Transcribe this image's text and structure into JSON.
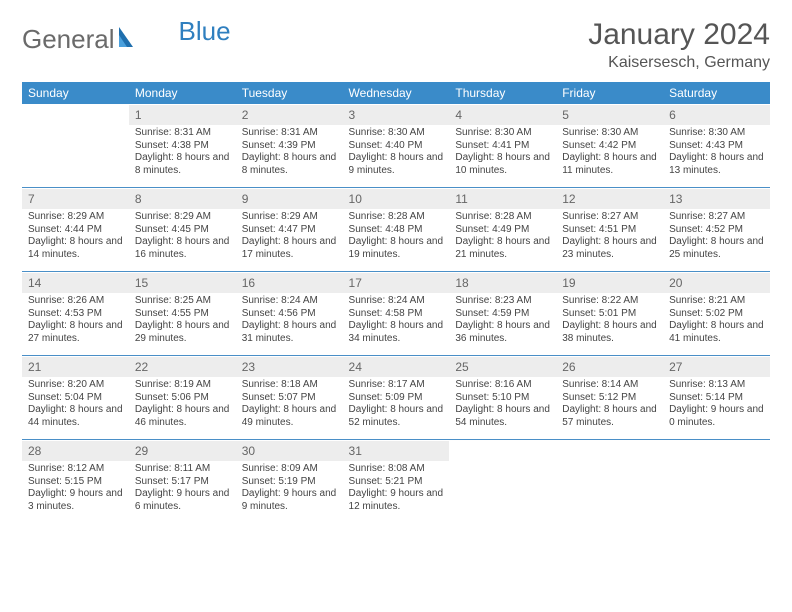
{
  "brand": {
    "general": "General",
    "blue": "Blue"
  },
  "title": "January 2024",
  "location": "Kaisersesch, Germany",
  "colors": {
    "header_bg": "#3a8bc9",
    "header_text": "#ffffff",
    "daynum_bg": "#ededed",
    "daynum_text": "#666666",
    "week_divider": "#4a8fc7",
    "body_bg": "#ffffff",
    "text": "#444444",
    "logo_general": "#6a6a6a",
    "logo_blue": "#2f7fbf"
  },
  "fonts": {
    "title_size_pt": 22,
    "location_size_pt": 12,
    "dayhead_size_pt": 9,
    "daynum_size_pt": 9,
    "detail_size_pt": 7.5
  },
  "daynames": [
    "Sunday",
    "Monday",
    "Tuesday",
    "Wednesday",
    "Thursday",
    "Friday",
    "Saturday"
  ],
  "weeks": [
    [
      null,
      {
        "n": "1",
        "sunrise": "Sunrise: 8:31 AM",
        "sunset": "Sunset: 4:38 PM",
        "daylight": "Daylight: 8 hours and 8 minutes."
      },
      {
        "n": "2",
        "sunrise": "Sunrise: 8:31 AM",
        "sunset": "Sunset: 4:39 PM",
        "daylight": "Daylight: 8 hours and 8 minutes."
      },
      {
        "n": "3",
        "sunrise": "Sunrise: 8:30 AM",
        "sunset": "Sunset: 4:40 PM",
        "daylight": "Daylight: 8 hours and 9 minutes."
      },
      {
        "n": "4",
        "sunrise": "Sunrise: 8:30 AM",
        "sunset": "Sunset: 4:41 PM",
        "daylight": "Daylight: 8 hours and 10 minutes."
      },
      {
        "n": "5",
        "sunrise": "Sunrise: 8:30 AM",
        "sunset": "Sunset: 4:42 PM",
        "daylight": "Daylight: 8 hours and 11 minutes."
      },
      {
        "n": "6",
        "sunrise": "Sunrise: 8:30 AM",
        "sunset": "Sunset: 4:43 PM",
        "daylight": "Daylight: 8 hours and 13 minutes."
      }
    ],
    [
      {
        "n": "7",
        "sunrise": "Sunrise: 8:29 AM",
        "sunset": "Sunset: 4:44 PM",
        "daylight": "Daylight: 8 hours and 14 minutes."
      },
      {
        "n": "8",
        "sunrise": "Sunrise: 8:29 AM",
        "sunset": "Sunset: 4:45 PM",
        "daylight": "Daylight: 8 hours and 16 minutes."
      },
      {
        "n": "9",
        "sunrise": "Sunrise: 8:29 AM",
        "sunset": "Sunset: 4:47 PM",
        "daylight": "Daylight: 8 hours and 17 minutes."
      },
      {
        "n": "10",
        "sunrise": "Sunrise: 8:28 AM",
        "sunset": "Sunset: 4:48 PM",
        "daylight": "Daylight: 8 hours and 19 minutes."
      },
      {
        "n": "11",
        "sunrise": "Sunrise: 8:28 AM",
        "sunset": "Sunset: 4:49 PM",
        "daylight": "Daylight: 8 hours and 21 minutes."
      },
      {
        "n": "12",
        "sunrise": "Sunrise: 8:27 AM",
        "sunset": "Sunset: 4:51 PM",
        "daylight": "Daylight: 8 hours and 23 minutes."
      },
      {
        "n": "13",
        "sunrise": "Sunrise: 8:27 AM",
        "sunset": "Sunset: 4:52 PM",
        "daylight": "Daylight: 8 hours and 25 minutes."
      }
    ],
    [
      {
        "n": "14",
        "sunrise": "Sunrise: 8:26 AM",
        "sunset": "Sunset: 4:53 PM",
        "daylight": "Daylight: 8 hours and 27 minutes."
      },
      {
        "n": "15",
        "sunrise": "Sunrise: 8:25 AM",
        "sunset": "Sunset: 4:55 PM",
        "daylight": "Daylight: 8 hours and 29 minutes."
      },
      {
        "n": "16",
        "sunrise": "Sunrise: 8:24 AM",
        "sunset": "Sunset: 4:56 PM",
        "daylight": "Daylight: 8 hours and 31 minutes."
      },
      {
        "n": "17",
        "sunrise": "Sunrise: 8:24 AM",
        "sunset": "Sunset: 4:58 PM",
        "daylight": "Daylight: 8 hours and 34 minutes."
      },
      {
        "n": "18",
        "sunrise": "Sunrise: 8:23 AM",
        "sunset": "Sunset: 4:59 PM",
        "daylight": "Daylight: 8 hours and 36 minutes."
      },
      {
        "n": "19",
        "sunrise": "Sunrise: 8:22 AM",
        "sunset": "Sunset: 5:01 PM",
        "daylight": "Daylight: 8 hours and 38 minutes."
      },
      {
        "n": "20",
        "sunrise": "Sunrise: 8:21 AM",
        "sunset": "Sunset: 5:02 PM",
        "daylight": "Daylight: 8 hours and 41 minutes."
      }
    ],
    [
      {
        "n": "21",
        "sunrise": "Sunrise: 8:20 AM",
        "sunset": "Sunset: 5:04 PM",
        "daylight": "Daylight: 8 hours and 44 minutes."
      },
      {
        "n": "22",
        "sunrise": "Sunrise: 8:19 AM",
        "sunset": "Sunset: 5:06 PM",
        "daylight": "Daylight: 8 hours and 46 minutes."
      },
      {
        "n": "23",
        "sunrise": "Sunrise: 8:18 AM",
        "sunset": "Sunset: 5:07 PM",
        "daylight": "Daylight: 8 hours and 49 minutes."
      },
      {
        "n": "24",
        "sunrise": "Sunrise: 8:17 AM",
        "sunset": "Sunset: 5:09 PM",
        "daylight": "Daylight: 8 hours and 52 minutes."
      },
      {
        "n": "25",
        "sunrise": "Sunrise: 8:16 AM",
        "sunset": "Sunset: 5:10 PM",
        "daylight": "Daylight: 8 hours and 54 minutes."
      },
      {
        "n": "26",
        "sunrise": "Sunrise: 8:14 AM",
        "sunset": "Sunset: 5:12 PM",
        "daylight": "Daylight: 8 hours and 57 minutes."
      },
      {
        "n": "27",
        "sunrise": "Sunrise: 8:13 AM",
        "sunset": "Sunset: 5:14 PM",
        "daylight": "Daylight: 9 hours and 0 minutes."
      }
    ],
    [
      {
        "n": "28",
        "sunrise": "Sunrise: 8:12 AM",
        "sunset": "Sunset: 5:15 PM",
        "daylight": "Daylight: 9 hours and 3 minutes."
      },
      {
        "n": "29",
        "sunrise": "Sunrise: 8:11 AM",
        "sunset": "Sunset: 5:17 PM",
        "daylight": "Daylight: 9 hours and 6 minutes."
      },
      {
        "n": "30",
        "sunrise": "Sunrise: 8:09 AM",
        "sunset": "Sunset: 5:19 PM",
        "daylight": "Daylight: 9 hours and 9 minutes."
      },
      {
        "n": "31",
        "sunrise": "Sunrise: 8:08 AM",
        "sunset": "Sunset: 5:21 PM",
        "daylight": "Daylight: 9 hours and 12 minutes."
      },
      null,
      null,
      null
    ]
  ]
}
